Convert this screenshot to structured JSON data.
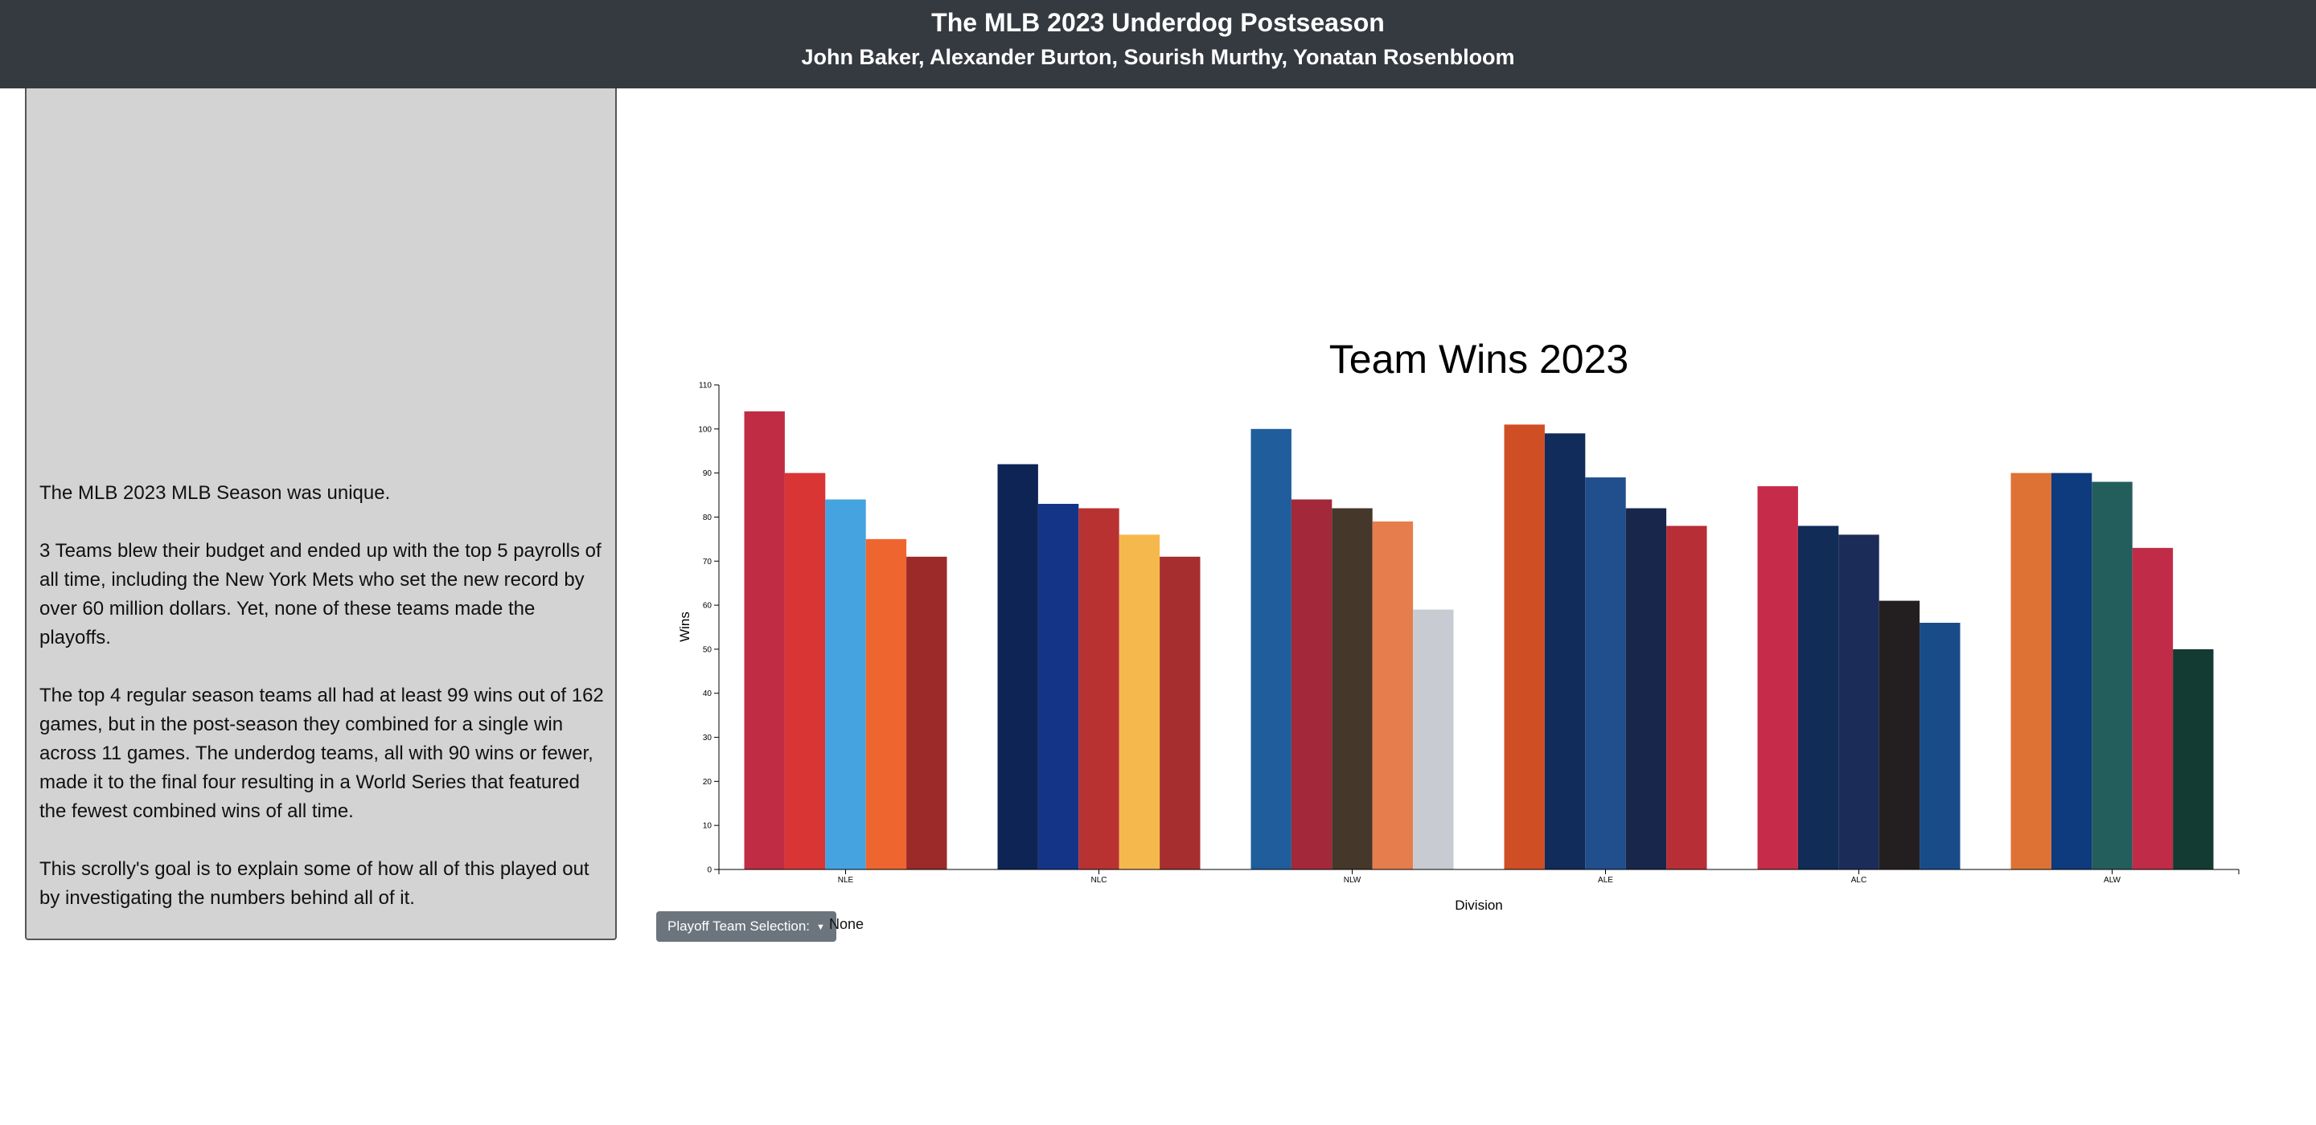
{
  "header": {
    "title": "The MLB 2023 Underdog Postseason",
    "authors": "John Baker, Alexander Burton, Sourish Murthy, Yonatan Rosenbloom"
  },
  "story": {
    "paragraphs": [
      "The MLB 2023 MLB Season was unique.",
      "3 Teams blew their budget and ended up with the top 5 payrolls of all time, including the New York Mets who set the new record by over 60 million dollars. Yet, none of these teams made the playoffs.",
      "The top 4 regular season teams all had at least 99 wins out of 162 games, but in the post-season they combined for a single win across 11 games. The underdog teams, all with 90 wins or fewer, made it to the final four resulting in a World Series that featured the fewest combined wins of all time.",
      "This scrolly's goal is to explain some of how all of this played out by investigating the numbers behind all of it."
    ]
  },
  "controls": {
    "dropdown_label": "Playoff Team Selection:",
    "selection_value": "None"
  },
  "chart_data": {
    "type": "bar",
    "title": "Team Wins 2023",
    "xlabel": "Division",
    "ylabel": "Wins",
    "ylim": [
      0,
      110
    ],
    "yticks": [
      0,
      10,
      20,
      30,
      40,
      50,
      60,
      70,
      80,
      90,
      100,
      110
    ],
    "grid": false,
    "legend": "none",
    "categories": [
      "NLE",
      "NLC",
      "NLW",
      "ALE",
      "ALC",
      "ALW"
    ],
    "groups": [
      {
        "division": "NLE",
        "values": [
          104,
          90,
          84,
          75,
          71
        ],
        "colors": [
          "#c02c44",
          "#d93535",
          "#45a3e0",
          "#ee6530",
          "#9b2a28"
        ]
      },
      {
        "division": "NLC",
        "values": [
          92,
          83,
          82,
          76,
          71
        ],
        "colors": [
          "#0e2455",
          "#143587",
          "#b83232",
          "#f5b84c",
          "#a62e2e"
        ]
      },
      {
        "division": "NLW",
        "values": [
          100,
          84,
          82,
          79,
          59
        ],
        "colors": [
          "#1f5d9c",
          "#a3283a",
          "#45372a",
          "#e67d4c",
          "#c8cbd1"
        ]
      },
      {
        "division": "ALE",
        "values": [
          101,
          99,
          89,
          82,
          78
        ],
        "colors": [
          "#d04e24",
          "#112b5a",
          "#214e8c",
          "#17264a",
          "#b72e37"
        ]
      },
      {
        "division": "ALC",
        "values": [
          87,
          78,
          76,
          61,
          56
        ],
        "colors": [
          "#c62c4a",
          "#102c57",
          "#1c2c58",
          "#231f20",
          "#184b88"
        ]
      },
      {
        "division": "ALW",
        "values": [
          90,
          90,
          88,
          73,
          50
        ],
        "colors": [
          "#de7235",
          "#0d3b7d",
          "#235e5d",
          "#c02c47",
          "#143b33"
        ]
      }
    ]
  }
}
